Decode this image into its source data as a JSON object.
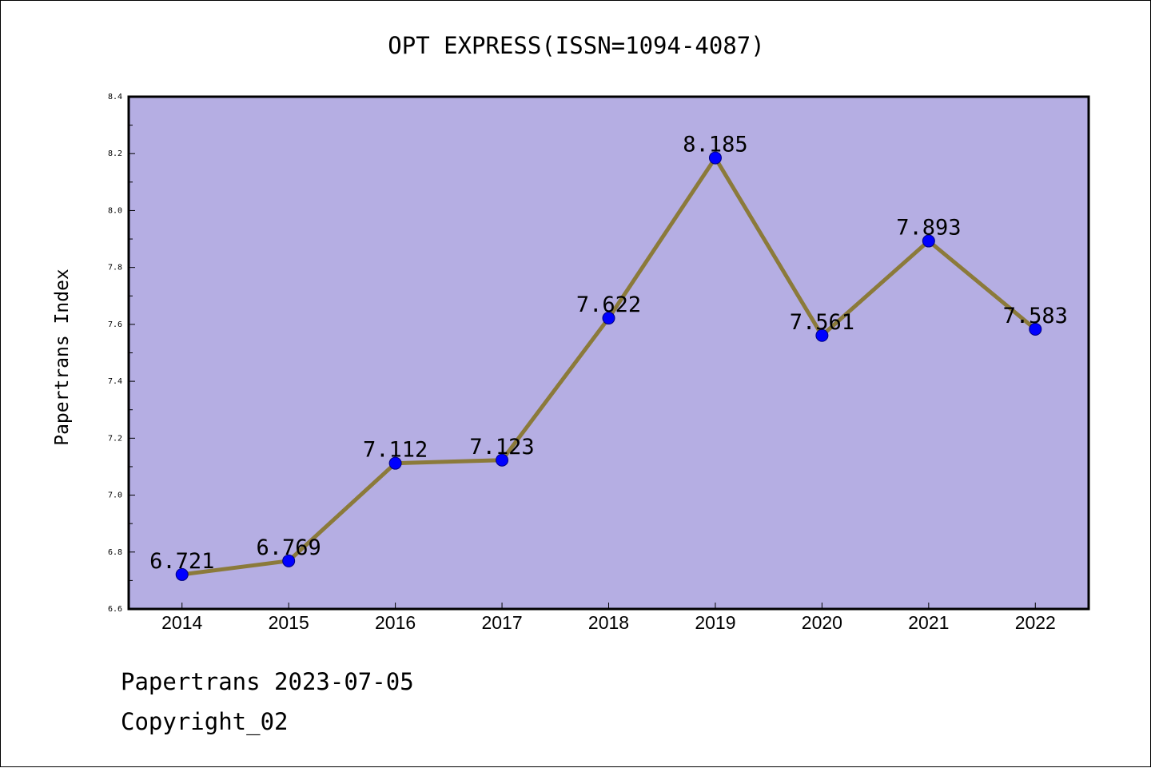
{
  "chart_data": {
    "type": "line",
    "title": "OPT EXPRESS(ISSN=1094-4087)",
    "xlabel": "",
    "ylabel": "Papertrans Index",
    "categories": [
      "2014",
      "2015",
      "2016",
      "2017",
      "2018",
      "2019",
      "2020",
      "2021",
      "2022"
    ],
    "values": [
      6.721,
      6.769,
      7.112,
      7.123,
      7.622,
      8.185,
      7.561,
      7.893,
      7.583
    ],
    "data_labels": [
      "6.721",
      "6.769",
      "7.112",
      "7.123",
      "7.622",
      "8.185",
      "7.561",
      "7.893",
      "7.583"
    ],
    "ylim": [
      6.6,
      8.4
    ],
    "yticks": [
      "6.6",
      "6.8",
      "7.0",
      "7.2",
      "7.4",
      "7.6",
      "7.8",
      "8.0",
      "8.2",
      "8.4"
    ],
    "grid": false,
    "legend": "none",
    "colors": {
      "plot_background": "#b5aee3",
      "line": "#8b7a3a",
      "marker": "#0000ff",
      "marker_edge": "#000080"
    }
  },
  "footer": {
    "line1": "Papertrans 2023-07-05",
    "line2": "Copyright_02"
  }
}
